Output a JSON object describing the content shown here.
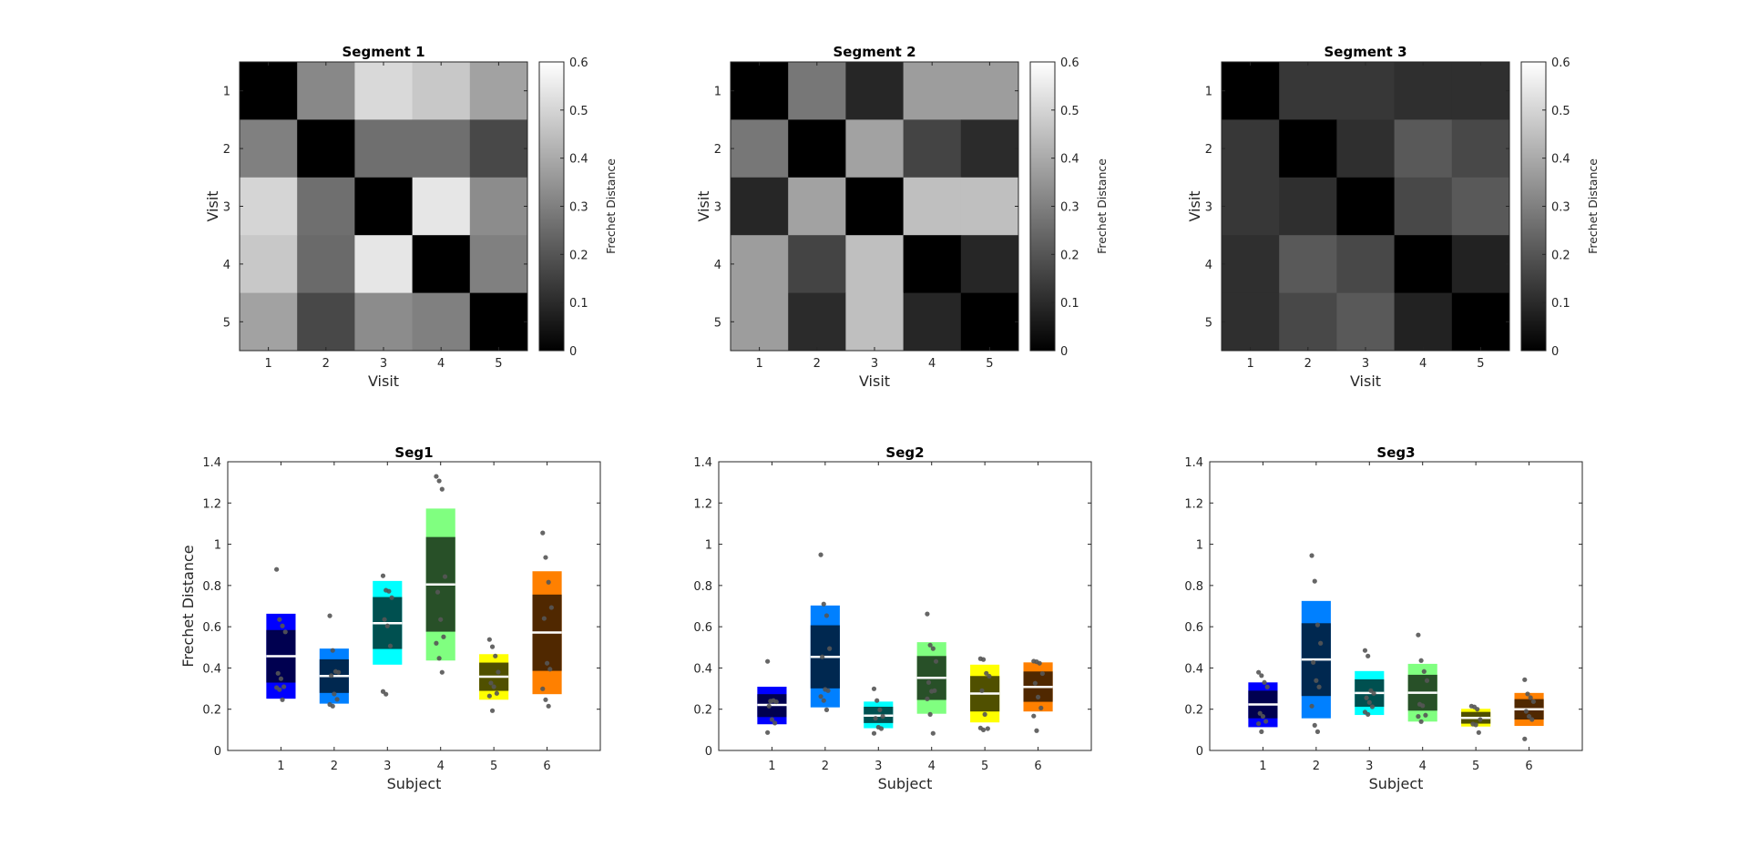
{
  "chart_data": [
    {
      "type": "heatmap",
      "title": "Segment 1",
      "xlabel": "Visit",
      "ylabel": "Visit",
      "x_ticks": [
        "1",
        "2",
        "3",
        "4",
        "5"
      ],
      "y_ticks": [
        "1",
        "2",
        "3",
        "4",
        "5"
      ],
      "colorbar": {
        "label": "Frechet Distance",
        "range": [
          0,
          0.6
        ],
        "ticks": [
          "0",
          "0.1",
          "0.2",
          "0.3",
          "0.4",
          "0.5",
          "0.6"
        ],
        "colormap": "gray"
      },
      "values": [
        [
          0,
          0.32,
          0.51,
          0.47,
          0.38
        ],
        [
          0.3,
          0,
          0.26,
          0.26,
          0.17
        ],
        [
          0.5,
          0.26,
          0,
          0.54,
          0.33
        ],
        [
          0.47,
          0.25,
          0.54,
          0,
          0.3
        ],
        [
          0.38,
          0.17,
          0.33,
          0.3,
          0
        ]
      ]
    },
    {
      "type": "heatmap",
      "title": "Segment 2",
      "xlabel": "Visit",
      "ylabel": "Visit",
      "x_ticks": [
        "1",
        "2",
        "3",
        "4",
        "5"
      ],
      "y_ticks": [
        "1",
        "2",
        "3",
        "4",
        "5"
      ],
      "colorbar": {
        "label": "Frechet Distance",
        "range": [
          0,
          0.6
        ],
        "ticks": [
          "0",
          "0.1",
          "0.2",
          "0.3",
          "0.4",
          "0.5",
          "0.6"
        ],
        "colormap": "gray"
      },
      "values": [
        [
          0,
          0.28,
          0.09,
          0.37,
          0.37
        ],
        [
          0.28,
          0,
          0.38,
          0.16,
          0.1
        ],
        [
          0.09,
          0.38,
          0,
          0.45,
          0.45
        ],
        [
          0.37,
          0.16,
          0.45,
          0,
          0.09
        ],
        [
          0.37,
          0.1,
          0.45,
          0.09,
          0
        ]
      ]
    },
    {
      "type": "heatmap",
      "title": "Segment 3",
      "xlabel": "Visit",
      "ylabel": "Visit",
      "x_ticks": [
        "1",
        "2",
        "3",
        "4",
        "5"
      ],
      "y_ticks": [
        "1",
        "2",
        "3",
        "4",
        "5"
      ],
      "colorbar": {
        "label": "Frechet Distance",
        "range": [
          0,
          0.6
        ],
        "ticks": [
          "0",
          "0.1",
          "0.2",
          "0.3",
          "0.4",
          "0.5",
          "0.6"
        ],
        "colormap": "gray"
      },
      "values": [
        [
          0,
          0.13,
          0.13,
          0.11,
          0.11
        ],
        [
          0.13,
          0,
          0.11,
          0.21,
          0.17
        ],
        [
          0.13,
          0.11,
          0,
          0.17,
          0.21
        ],
        [
          0.11,
          0.21,
          0.17,
          0,
          0.08
        ],
        [
          0.11,
          0.17,
          0.21,
          0.08,
          0
        ]
      ]
    },
    {
      "type": "box",
      "title": "Seg1",
      "xlabel": "Subject",
      "ylabel": "Frechet Distance",
      "xlim": [
        0,
        7
      ],
      "ylim": [
        0,
        1.4
      ],
      "x_ticks": [
        "1",
        "2",
        "3",
        "4",
        "5",
        "6"
      ],
      "y_ticks": [
        "0",
        "0.2",
        "0.4",
        "0.6",
        "0.8",
        "1",
        "1.2",
        "1.4"
      ],
      "groups": [
        {
          "subject": 1,
          "mean": 0.457,
          "inner": [
            0.329,
            0.584
          ],
          "outer": [
            0.251,
            0.663
          ],
          "points": [
            0.878,
            0.635,
            0.604,
            0.575,
            0.374,
            0.348,
            0.309,
            0.305,
            0.295,
            0.246
          ]
        },
        {
          "subject": 2,
          "mean": 0.361,
          "inner": [
            0.279,
            0.442
          ],
          "outer": [
            0.227,
            0.494
          ],
          "points": [
            0.653,
            0.485,
            0.383,
            0.379,
            0.363,
            0.274,
            0.248,
            0.223,
            0.215
          ]
        },
        {
          "subject": 3,
          "mean": 0.617,
          "inner": [
            0.492,
            0.744
          ],
          "outer": [
            0.416,
            0.822
          ],
          "points": [
            0.847,
            0.777,
            0.772,
            0.741,
            0.635,
            0.604,
            0.507,
            0.286,
            0.273
          ]
        },
        {
          "subject": 4,
          "mean": 0.805,
          "inner": [
            0.576,
            1.035
          ],
          "outer": [
            0.436,
            1.173
          ],
          "points": [
            1.329,
            1.307,
            1.267,
            0.843,
            0.768,
            0.635,
            0.551,
            0.52,
            0.447,
            0.379
          ]
        },
        {
          "subject": 5,
          "mean": 0.358,
          "inner": [
            0.289,
            0.426
          ],
          "outer": [
            0.246,
            0.467
          ],
          "points": [
            0.538,
            0.503,
            0.458,
            0.38,
            0.327,
            0.309,
            0.277,
            0.264,
            0.193
          ]
        },
        {
          "subject": 6,
          "mean": 0.572,
          "inner": [
            0.386,
            0.756
          ],
          "outer": [
            0.273,
            0.869
          ],
          "points": [
            1.055,
            0.936,
            0.816,
            0.693,
            0.64,
            0.423,
            0.394,
            0.299,
            0.246,
            0.215
          ]
        }
      ]
    },
    {
      "type": "box",
      "title": "Seg2",
      "xlabel": "Subject",
      "ylabel": "",
      "xlim": [
        0,
        7
      ],
      "ylim": [
        0,
        1.4
      ],
      "x_ticks": [
        "1",
        "2",
        "3",
        "4",
        "5",
        "6"
      ],
      "y_ticks": [
        "0",
        "0.2",
        "0.4",
        "0.6",
        "0.8",
        "1",
        "1.2",
        "1.4"
      ],
      "groups": [
        {
          "subject": 1,
          "mean": 0.221,
          "inner": [
            0.162,
            0.273
          ],
          "outer": [
            0.127,
            0.309
          ],
          "points": [
            0.432,
            0.239,
            0.242,
            0.236,
            0.215,
            0.15,
            0.133,
            0.087
          ]
        },
        {
          "subject": 2,
          "mean": 0.454,
          "inner": [
            0.301,
            0.607
          ],
          "outer": [
            0.209,
            0.703
          ],
          "points": [
            0.949,
            0.71,
            0.654,
            0.494,
            0.454,
            0.296,
            0.29,
            0.262,
            0.242,
            0.197
          ]
        },
        {
          "subject": 3,
          "mean": 0.169,
          "inner": [
            0.133,
            0.212
          ],
          "outer": [
            0.108,
            0.237
          ],
          "points": [
            0.299,
            0.242,
            0.197,
            0.165,
            0.156,
            0.113,
            0.106,
            0.083
          ]
        },
        {
          "subject": 4,
          "mean": 0.352,
          "inner": [
            0.245,
            0.458
          ],
          "outer": [
            0.178,
            0.525
          ],
          "points": [
            0.662,
            0.511,
            0.494,
            0.432,
            0.33,
            0.287,
            0.29,
            0.25,
            0.175,
            0.083
          ]
        },
        {
          "subject": 5,
          "mean": 0.276,
          "inner": [
            0.189,
            0.361
          ],
          "outer": [
            0.136,
            0.416
          ],
          "points": [
            0.445,
            0.441,
            0.374,
            0.36,
            0.29,
            0.175,
            0.106,
            0.109,
            0.1
          ]
        },
        {
          "subject": 6,
          "mean": 0.308,
          "inner": [
            0.236,
            0.383
          ],
          "outer": [
            0.189,
            0.427
          ],
          "points": [
            0.433,
            0.43,
            0.423,
            0.373,
            0.326,
            0.259,
            0.206,
            0.167,
            0.096
          ]
        }
      ]
    },
    {
      "type": "box",
      "title": "Seg3",
      "xlabel": "Subject",
      "ylabel": "",
      "xlim": [
        0,
        7
      ],
      "ylim": [
        0,
        1.4
      ],
      "x_ticks": [
        "1",
        "2",
        "3",
        "4",
        "5",
        "6"
      ],
      "y_ticks": [
        "0",
        "0.2",
        "0.4",
        "0.6",
        "0.8",
        "1",
        "1.2",
        "1.4"
      ],
      "groups": [
        {
          "subject": 1,
          "mean": 0.223,
          "inner": [
            0.156,
            0.29
          ],
          "outer": [
            0.113,
            0.33
          ],
          "points": [
            0.379,
            0.363,
            0.33,
            0.308,
            0.18,
            0.165,
            0.141,
            0.13,
            0.091
          ]
        },
        {
          "subject": 2,
          "mean": 0.441,
          "inner": [
            0.264,
            0.617
          ],
          "outer": [
            0.156,
            0.725
          ],
          "points": [
            0.945,
            0.821,
            0.609,
            0.52,
            0.427,
            0.339,
            0.308,
            0.215,
            0.122,
            0.091
          ]
        },
        {
          "subject": 3,
          "mean": 0.279,
          "inner": [
            0.212,
            0.345
          ],
          "outer": [
            0.172,
            0.385
          ],
          "points": [
            0.485,
            0.458,
            0.29,
            0.277,
            0.255,
            0.233,
            0.212,
            0.186,
            0.175
          ]
        },
        {
          "subject": 4,
          "mean": 0.28,
          "inner": [
            0.193,
            0.367
          ],
          "outer": [
            0.14,
            0.42
          ],
          "points": [
            0.56,
            0.436,
            0.383,
            0.339,
            0.224,
            0.217,
            0.171,
            0.165,
            0.14
          ]
        },
        {
          "subject": 5,
          "mean": 0.158,
          "inner": [
            0.13,
            0.187
          ],
          "outer": [
            0.116,
            0.202
          ],
          "points": [
            0.215,
            0.211,
            0.2,
            0.15,
            0.128,
            0.124,
            0.087
          ]
        },
        {
          "subject": 6,
          "mean": 0.2,
          "inner": [
            0.15,
            0.249
          ],
          "outer": [
            0.119,
            0.279
          ],
          "points": [
            0.343,
            0.274,
            0.256,
            0.237,
            0.19,
            0.165,
            0.15,
            0.056
          ]
        }
      ]
    }
  ],
  "colors": {
    "outer": [
      "#0000ff",
      "#0080ff",
      "#00ffff",
      "#80ff80",
      "#ffff00",
      "#ff8000"
    ],
    "inner": [
      "#000050",
      "#002850",
      "#005050",
      "#285028",
      "#505000",
      "#502800"
    ],
    "mean_line": "#ffffff",
    "points": "#555555"
  }
}
